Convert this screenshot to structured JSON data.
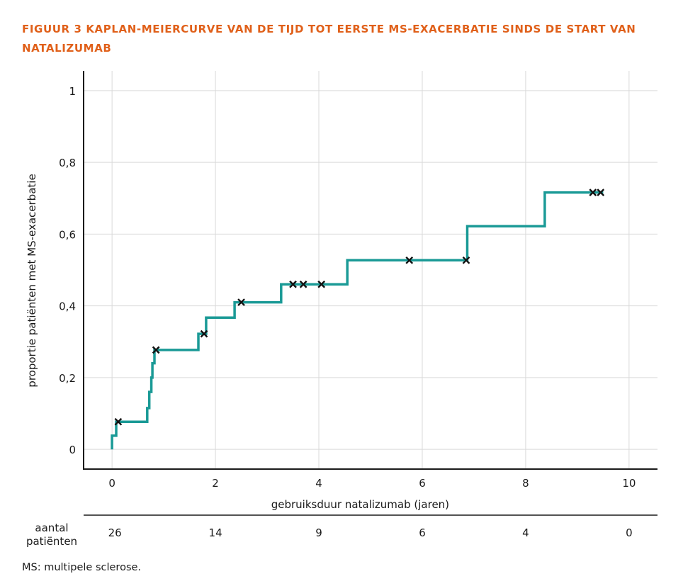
{
  "figure": {
    "title": "FIGUUR 3  KAPLAN-MEIERCURVE VAN DE TIJD TOT EERSTE MS-EXACERBATIE SINDS DE START VAN NATALIZUMAB",
    "footnote": "MS: multipele sclerose.",
    "colors": {
      "title": "#e0601a",
      "curve": "#1a9a96",
      "grid": "#d9d9d9",
      "axis": "#1a1a1a"
    }
  },
  "chart_data": {
    "type": "line",
    "title": "",
    "xlabel": "gebruiksduur natalizumab (jaren)",
    "ylabel": "proportie patiënten met MS-exacerbatie",
    "xlim": [
      -0.55,
      10.55
    ],
    "ylim": [
      -0.055,
      1.055
    ],
    "x_ticks": [
      0,
      2,
      4,
      6,
      8,
      10
    ],
    "x_tick_labels": [
      "0",
      "2",
      "4",
      "6",
      "8",
      "10"
    ],
    "y_ticks": [
      0,
      0.2,
      0.4,
      0.6,
      0.8,
      1
    ],
    "y_tick_labels": [
      "0",
      "0,2",
      "0,4",
      "0,6",
      "0,8",
      "1"
    ],
    "grid": true,
    "series": [
      {
        "style": "step",
        "points": [
          [
            0.0,
            0.0
          ],
          [
            0.0,
            0.038
          ],
          [
            0.08,
            0.038
          ],
          [
            0.08,
            0.077
          ],
          [
            0.68,
            0.077
          ],
          [
            0.68,
            0.115
          ],
          [
            0.72,
            0.115
          ],
          [
            0.72,
            0.16
          ],
          [
            0.76,
            0.16
          ],
          [
            0.76,
            0.2
          ],
          [
            0.78,
            0.2
          ],
          [
            0.78,
            0.24
          ],
          [
            0.82,
            0.24
          ],
          [
            0.82,
            0.277
          ],
          [
            1.67,
            0.277
          ],
          [
            1.67,
            0.322
          ],
          [
            1.82,
            0.322
          ],
          [
            1.82,
            0.367
          ],
          [
            2.37,
            0.367
          ],
          [
            2.37,
            0.41
          ],
          [
            3.27,
            0.41
          ],
          [
            3.27,
            0.46
          ],
          [
            4.55,
            0.46
          ],
          [
            4.55,
            0.527
          ],
          [
            6.87,
            0.527
          ],
          [
            6.87,
            0.622
          ],
          [
            8.37,
            0.622
          ],
          [
            8.37,
            0.716
          ],
          [
            9.5,
            0.716
          ]
        ],
        "censored": [
          [
            0.12,
            0.077
          ],
          [
            0.85,
            0.277
          ],
          [
            1.78,
            0.322
          ],
          [
            2.5,
            0.41
          ],
          [
            3.5,
            0.46
          ],
          [
            3.7,
            0.46
          ],
          [
            4.05,
            0.46
          ],
          [
            5.75,
            0.527
          ],
          [
            6.85,
            0.527
          ],
          [
            9.3,
            0.716
          ],
          [
            9.45,
            0.716
          ]
        ]
      }
    ],
    "risk_table": {
      "label_line1": "aantal",
      "label_line2": "patiënten",
      "times": [
        0,
        2,
        4,
        6,
        8,
        10
      ],
      "values": [
        "26",
        "14",
        "9",
        "6",
        "4",
        "0"
      ]
    }
  }
}
